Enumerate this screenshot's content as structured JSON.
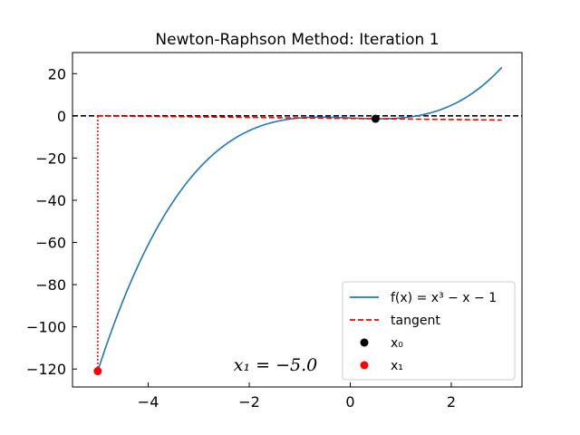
{
  "chart_data": {
    "type": "line",
    "title": "Newton-Raphson Method: Iteration 1",
    "xlabel": "",
    "ylabel": "",
    "xlim": [
      -5.5,
      3.4
    ],
    "ylim": [
      -128.5,
      30
    ],
    "xticks": [
      -4,
      -2,
      0,
      2
    ],
    "xtick_labels": [
      "−4",
      "−2",
      "0",
      "2"
    ],
    "yticks": [
      20,
      0,
      -20,
      -40,
      -60,
      -80,
      -100,
      -120
    ],
    "ytick_labels": [
      "20",
      "0",
      "−20",
      "−40",
      "−60",
      "−80",
      "−100",
      "−120"
    ],
    "series": [
      {
        "name": "f(x) = x³ − x − 1",
        "kind": "function",
        "x_range": [
          -5.0,
          3.0
        ],
        "color": "#1f77b4",
        "style": "solid"
      },
      {
        "name": "tangent",
        "kind": "line",
        "x": [
          -5.0,
          3.0
        ],
        "y": [
          0.0,
          -2.0
        ],
        "color": "#ff0000",
        "style": "dashed"
      },
      {
        "name": "x₀",
        "kind": "point",
        "x": 0.5,
        "y": -1.375,
        "color": "#000000"
      },
      {
        "name": "x₁",
        "kind": "point",
        "x": -5.0,
        "y": -121.0,
        "color": "#ff0000"
      }
    ],
    "reference_lines": [
      {
        "orientation": "horizontal",
        "value": 0,
        "color": "#000000",
        "style": "dashed"
      },
      {
        "orientation": "vertical",
        "value": -5.0,
        "from": 0,
        "to": -121.0,
        "color": "#ff0000",
        "style": "dotted"
      }
    ],
    "legend": {
      "position": "lower-right",
      "entries": [
        {
          "label": "f(x) = x³ − x − 1",
          "marker": "line",
          "color": "#1f77b4"
        },
        {
          "label": "tangent",
          "marker": "dashed-line",
          "color": "#ff0000"
        },
        {
          "label": "x₀",
          "marker": "dot",
          "color": "#000000"
        },
        {
          "label": "x₁",
          "marker": "dot",
          "color": "#ff0000"
        }
      ]
    },
    "annotation": {
      "text": "x₁ = −5.0"
    }
  }
}
